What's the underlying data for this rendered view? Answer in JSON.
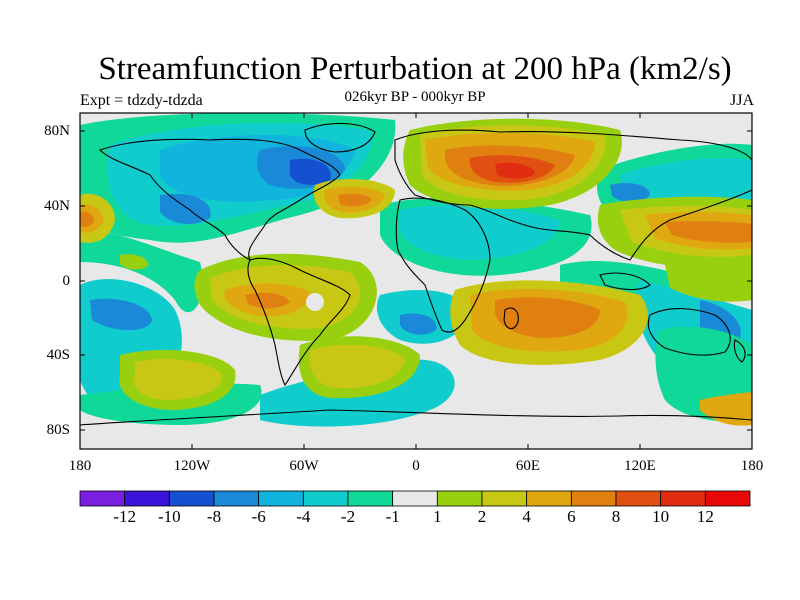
{
  "title": "Streamfunction Perturbation at 200 hPa (km2/s)",
  "subtitle": "026kyr BP - 000kyr BP",
  "left_label": "Expt = tdzdy-tdzda",
  "right_label": "JJA",
  "lat_ticks": [
    "80N",
    "40N",
    "0",
    "40S",
    "80S"
  ],
  "lon_ticks": [
    "180",
    "120W",
    "60W",
    "0",
    "60E",
    "120E",
    "180"
  ],
  "colorbar": {
    "labels": [
      "-12",
      "-10",
      "-8",
      "-6",
      "-4",
      "-2",
      "-1",
      "1",
      "2",
      "4",
      "6",
      "8",
      "10",
      "12"
    ],
    "colors": [
      "#7a1fe0",
      "#3a14d8",
      "#1550d0",
      "#1a8ad8",
      "#10b4dc",
      "#10cccc",
      "#10d898",
      "#e8e8e8",
      "#98d010",
      "#c8c814",
      "#e0a810",
      "#e08010",
      "#e05010",
      "#e02c10",
      "#e80808"
    ]
  }
}
